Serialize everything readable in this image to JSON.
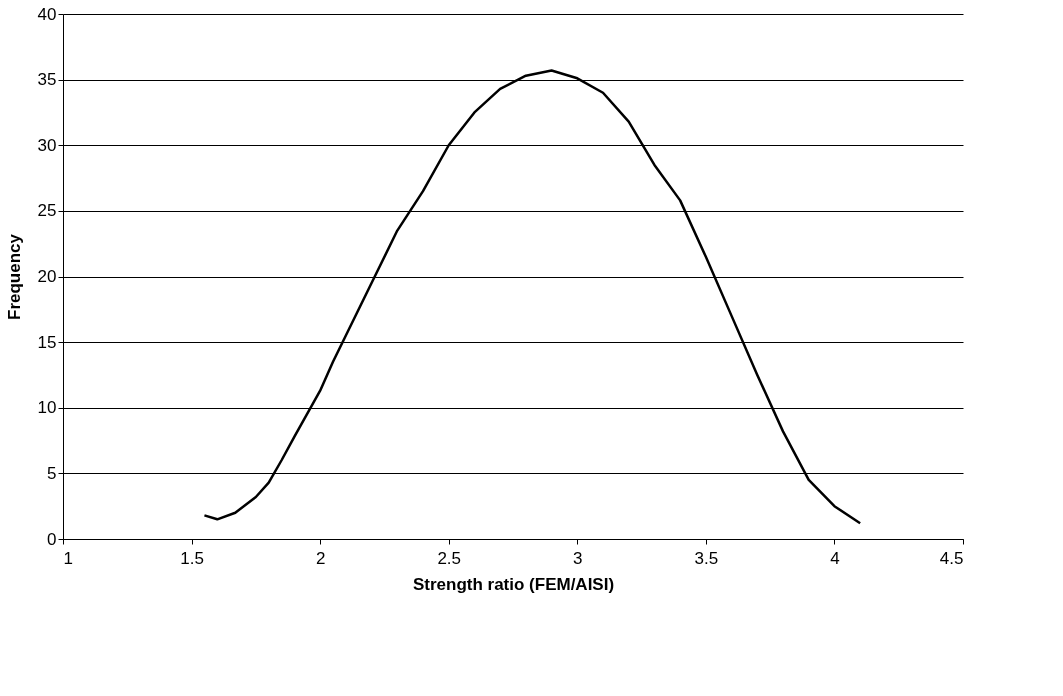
{
  "chart_data": {
    "type": "line",
    "xlabel": "Strength ratio (FEM/AISI)",
    "ylabel": "Frequency",
    "xlim": [
      1,
      4.5
    ],
    "xticks": [
      1,
      1.5,
      2,
      2.5,
      3,
      3.5,
      4,
      4.5
    ],
    "ylim": [
      0,
      40
    ],
    "yticks": [
      0,
      5,
      10,
      15,
      20,
      25,
      30,
      35,
      40
    ],
    "grid": "y",
    "marker": "none",
    "line_style": "solid",
    "series": [
      {
        "color": "#000000",
        "x": [
          1.55,
          1.6,
          1.67,
          1.75,
          1.8,
          1.85,
          1.9,
          2.0,
          2.05,
          2.1,
          2.2,
          2.3,
          2.4,
          2.5,
          2.6,
          2.7,
          2.8,
          2.9,
          3.0,
          3.1,
          3.2,
          3.3,
          3.4,
          3.5,
          3.6,
          3.7,
          3.8,
          3.9,
          4.0,
          4.1
        ],
        "values": [
          1.8,
          1.5,
          2.0,
          3.2,
          4.3,
          6.0,
          7.8,
          11.3,
          13.5,
          15.5,
          19.5,
          23.5,
          26.5,
          30.0,
          32.5,
          34.3,
          35.3,
          35.7,
          35.1,
          34.0,
          31.8,
          28.5,
          25.8,
          21.5,
          17.0,
          12.5,
          8.2,
          4.5,
          2.5,
          1.2
        ]
      }
    ]
  }
}
